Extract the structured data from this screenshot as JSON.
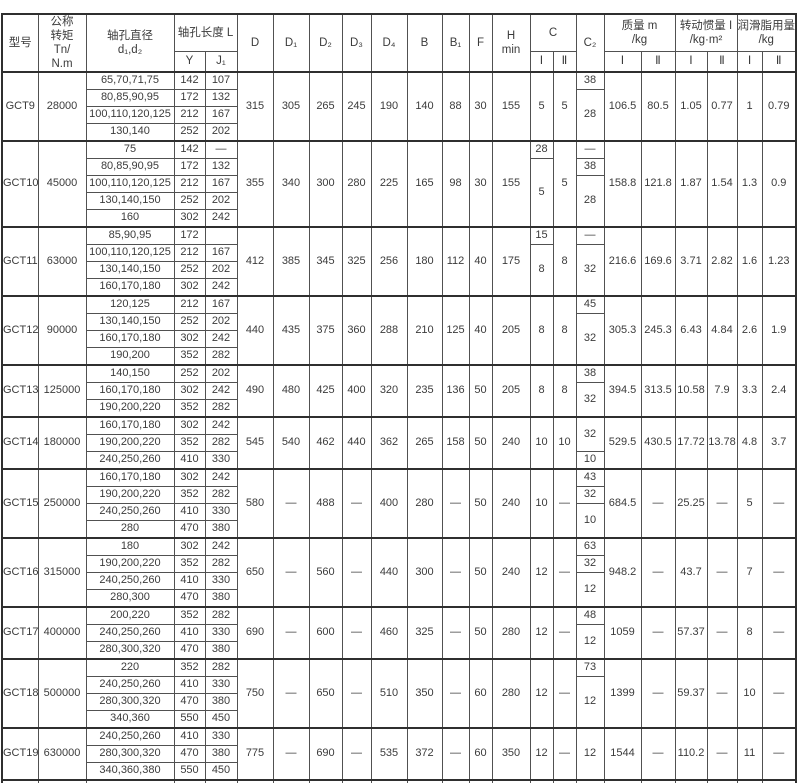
{
  "table": {
    "header": {
      "model": "型号",
      "torque": "公称\n转矩\nTn/\nN.m",
      "bore": "轴孔直径\nd₁,d₂",
      "bore_len": "轴孔长度 L",
      "y": "Y",
      "j1": "J₁",
      "d": "D",
      "d1": "D₁",
      "d2": "D₂",
      "d3": "D₃",
      "d4": "D₄",
      "b": "B",
      "b1": "B₁",
      "f": "F",
      "hmin": "H\nmin",
      "c": "C",
      "c2": "C₂",
      "mass": "质量 m\n/kg",
      "inertia": "转动惯量 I\n/kg·m²",
      "grease": "润滑脂用量\n/kg",
      "col_i": "Ⅰ",
      "col_ii": "Ⅱ"
    },
    "blocks": [
      {
        "model": "GCT9",
        "torque": "28000",
        "rows": [
          [
            "65,70,71,75",
            "142",
            "107"
          ],
          [
            "80,85,90,95",
            "172",
            "132"
          ],
          [
            "100,110,120,125",
            "212",
            "167"
          ],
          [
            "130,140",
            "252",
            "202"
          ]
        ],
        "D": "315",
        "D1": "305",
        "D2": "265",
        "D3": "245",
        "D4": "190",
        "B": "140",
        "B1": "88",
        "F": "30",
        "Hmin": "155",
        "cI": [
          {
            "v": "5",
            "n": 4
          }
        ],
        "cII": [
          {
            "v": "5",
            "n": 4
          }
        ],
        "c2": [
          {
            "v": "38",
            "n": 1
          },
          {
            "v": "28",
            "n": 3
          }
        ],
        "mI": "106.5",
        "mII": "80.5",
        "iI": "1.05",
        "iII": "0.77",
        "gI": "1",
        "gII": "0.79"
      },
      {
        "model": "GCT10",
        "torque": "45000",
        "rows": [
          [
            "75",
            "142",
            "—"
          ],
          [
            "80,85,90,95",
            "172",
            "132"
          ],
          [
            "100,110,120,125",
            "212",
            "167"
          ],
          [
            "130,140,150",
            "252",
            "202"
          ],
          [
            "160",
            "302",
            "242"
          ]
        ],
        "D": "355",
        "D1": "340",
        "D2": "300",
        "D3": "280",
        "D4": "225",
        "B": "165",
        "B1": "98",
        "F": "30",
        "Hmin": "155",
        "cI": [
          {
            "v": "28",
            "n": 1
          },
          {
            "v": "5",
            "n": 4
          }
        ],
        "cII": [
          {
            "v": "5",
            "n": 5
          }
        ],
        "c2": [
          {
            "v": "—",
            "n": 1
          },
          {
            "v": "38",
            "n": 1
          },
          {
            "v": "28",
            "n": 3
          }
        ],
        "mI": "158.8",
        "mII": "121.8",
        "iI": "1.87",
        "iII": "1.54",
        "gI": "1.3",
        "gII": "0.9"
      },
      {
        "model": "GCT11",
        "torque": "63000",
        "rows": [
          [
            "85,90,95",
            "172",
            ""
          ],
          [
            "100,110,120,125",
            "212",
            "167"
          ],
          [
            "130,140,150",
            "252",
            "202"
          ],
          [
            "160,170,180",
            "302",
            "242"
          ]
        ],
        "D": "412",
        "D1": "385",
        "D2": "345",
        "D3": "325",
        "D4": "256",
        "B": "180",
        "B1": "112",
        "F": "40",
        "Hmin": "175",
        "cI": [
          {
            "v": "15",
            "n": 1
          },
          {
            "v": "8",
            "n": 3
          }
        ],
        "cII": [
          {
            "v": "8",
            "n": 4
          }
        ],
        "c2": [
          {
            "v": "—",
            "n": 1
          },
          {
            "v": "32",
            "n": 3
          }
        ],
        "mI": "216.6",
        "mII": "169.6",
        "iI": "3.71",
        "iII": "2.82",
        "gI": "1.6",
        "gII": "1.23"
      },
      {
        "model": "GCT12",
        "torque": "90000",
        "rows": [
          [
            "120,125",
            "212",
            "167"
          ],
          [
            "130,140,150",
            "252",
            "202"
          ],
          [
            "160,170,180",
            "302",
            "242"
          ],
          [
            "190,200",
            "352",
            "282"
          ]
        ],
        "D": "440",
        "D1": "435",
        "D2": "375",
        "D3": "360",
        "D4": "288",
        "B": "210",
        "B1": "125",
        "F": "40",
        "Hmin": "205",
        "cI": [
          {
            "v": "8",
            "n": 4
          }
        ],
        "cII": [
          {
            "v": "8",
            "n": 4
          }
        ],
        "c2": [
          {
            "v": "45",
            "n": 1
          },
          {
            "v": "32",
            "n": 3
          }
        ],
        "mI": "305.3",
        "mII": "245.3",
        "iI": "6.43",
        "iII": "4.84",
        "gI": "2.6",
        "gII": "1.9"
      },
      {
        "model": "GCT13",
        "torque": "125000",
        "rows": [
          [
            "140,150",
            "252",
            "202"
          ],
          [
            "160,170,180",
            "302",
            "242"
          ],
          [
            "190,200,220",
            "352",
            "282"
          ]
        ],
        "D": "490",
        "D1": "480",
        "D2": "425",
        "D3": "400",
        "D4": "320",
        "B": "235",
        "B1": "136",
        "F": "50",
        "Hmin": "205",
        "cI": [
          {
            "v": "8",
            "n": 3
          }
        ],
        "cII": [
          {
            "v": "8",
            "n": 3
          }
        ],
        "c2": [
          {
            "v": "38",
            "n": 1
          },
          {
            "v": "32",
            "n": 2
          }
        ],
        "mI": "394.5",
        "mII": "313.5",
        "iI": "10.58",
        "iII": "7.9",
        "gI": "3.3",
        "gII": "2.4"
      },
      {
        "model": "GCT14",
        "torque": "180000",
        "rows": [
          [
            "160,170,180",
            "302",
            "242"
          ],
          [
            "190,200,220",
            "352",
            "282"
          ],
          [
            "240,250,260",
            "410",
            "330"
          ]
        ],
        "D": "545",
        "D1": "540",
        "D2": "462",
        "D3": "440",
        "D4": "362",
        "B": "265",
        "B1": "158",
        "F": "50",
        "Hmin": "240",
        "cI": [
          {
            "v": "10",
            "n": 3
          }
        ],
        "cII": [
          {
            "v": "10",
            "n": 3
          }
        ],
        "c2": [
          {
            "v": "32",
            "n": 2
          },
          {
            "v": "10",
            "n": 1
          }
        ],
        "mI": "529.5",
        "mII": "430.5",
        "iI": "17.72",
        "iII": "13.78",
        "gI": "4.8",
        "gII": "3.7"
      },
      {
        "model": "GCT15",
        "torque": "250000",
        "rows": [
          [
            "160,170,180",
            "302",
            "242"
          ],
          [
            "190,200,220",
            "352",
            "282"
          ],
          [
            "240,250,260",
            "410",
            "330"
          ],
          [
            "280",
            "470",
            "380"
          ]
        ],
        "D": "580",
        "D1": "—",
        "D2": "488",
        "D3": "—",
        "D4": "400",
        "B": "280",
        "B1": "—",
        "F": "50",
        "Hmin": "240",
        "cI": [
          {
            "v": "10",
            "n": 4
          }
        ],
        "cII": [
          {
            "v": "—",
            "n": 4
          }
        ],
        "c2": [
          {
            "v": "43",
            "n": 1
          },
          {
            "v": "32",
            "n": 1
          },
          {
            "v": "10",
            "n": 2
          }
        ],
        "mI": "684.5",
        "mII": "—",
        "iI": "25.25",
        "iII": "—",
        "gI": "5",
        "gII": "—"
      },
      {
        "model": "GCT16",
        "torque": "315000",
        "rows": [
          [
            "180",
            "302",
            "242"
          ],
          [
            "190,200,220",
            "352",
            "282"
          ],
          [
            "240,250,260",
            "410",
            "330"
          ],
          [
            "280,300",
            "470",
            "380"
          ]
        ],
        "D": "650",
        "D1": "—",
        "D2": "560",
        "D3": "—",
        "D4": "440",
        "B": "300",
        "B1": "—",
        "F": "50",
        "Hmin": "240",
        "cI": [
          {
            "v": "12",
            "n": 4
          }
        ],
        "cII": [
          {
            "v": "—",
            "n": 4
          }
        ],
        "c2": [
          {
            "v": "63",
            "n": 1
          },
          {
            "v": "32",
            "n": 1
          },
          {
            "v": "12",
            "n": 2
          }
        ],
        "mI": "948.2",
        "mII": "—",
        "iI": "43.7",
        "iII": "—",
        "gI": "7",
        "gII": "—"
      },
      {
        "model": "GCT17",
        "torque": "400000",
        "rows": [
          [
            "200,220",
            "352",
            "282"
          ],
          [
            "240,250,260",
            "410",
            "330"
          ],
          [
            "280,300,320",
            "470",
            "380"
          ]
        ],
        "D": "690",
        "D1": "—",
        "D2": "600",
        "D3": "—",
        "D4": "460",
        "B": "325",
        "B1": "—",
        "F": "50",
        "Hmin": "280",
        "cI": [
          {
            "v": "12",
            "n": 3
          }
        ],
        "cII": [
          {
            "v": "—",
            "n": 3
          }
        ],
        "c2": [
          {
            "v": "48",
            "n": 1
          },
          {
            "v": "12",
            "n": 2
          }
        ],
        "mI": "1059",
        "mII": "—",
        "iI": "57.37",
        "iII": "—",
        "gI": "8",
        "gII": "—"
      },
      {
        "model": "GCT18",
        "torque": "500000",
        "rows": [
          [
            "220",
            "352",
            "282"
          ],
          [
            "240,250,260",
            "410",
            "330"
          ],
          [
            "280,300,320",
            "470",
            "380"
          ],
          [
            "340,360",
            "550",
            "450"
          ]
        ],
        "D": "750",
        "D1": "—",
        "D2": "650",
        "D3": "—",
        "D4": "510",
        "B": "350",
        "B1": "—",
        "F": "60",
        "Hmin": "280",
        "cI": [
          {
            "v": "12",
            "n": 4
          }
        ],
        "cII": [
          {
            "v": "—",
            "n": 4
          }
        ],
        "c2": [
          {
            "v": "73",
            "n": 1
          },
          {
            "v": "12",
            "n": 3
          }
        ],
        "mI": "1399",
        "mII": "—",
        "iI": "59.37",
        "iII": "—",
        "gI": "10",
        "gII": "—"
      },
      {
        "model": "GCT19",
        "torque": "630000",
        "rows": [
          [
            "240,250,260",
            "410",
            "330"
          ],
          [
            "280,300,320",
            "470",
            "380"
          ],
          [
            "340,360,380",
            "550",
            "450"
          ]
        ],
        "D": "775",
        "D1": "—",
        "D2": "690",
        "D3": "—",
        "D4": "535",
        "B": "372",
        "B1": "—",
        "F": "60",
        "Hmin": "350",
        "cI": [
          {
            "v": "12",
            "n": 3
          }
        ],
        "cII": [
          {
            "v": "—",
            "n": 3
          }
        ],
        "c2": [
          {
            "v": "12",
            "n": 3
          }
        ],
        "mI": "1544",
        "mII": "—",
        "iI": "110.2",
        "iII": "—",
        "gI": "11",
        "gII": "—"
      }
    ]
  }
}
